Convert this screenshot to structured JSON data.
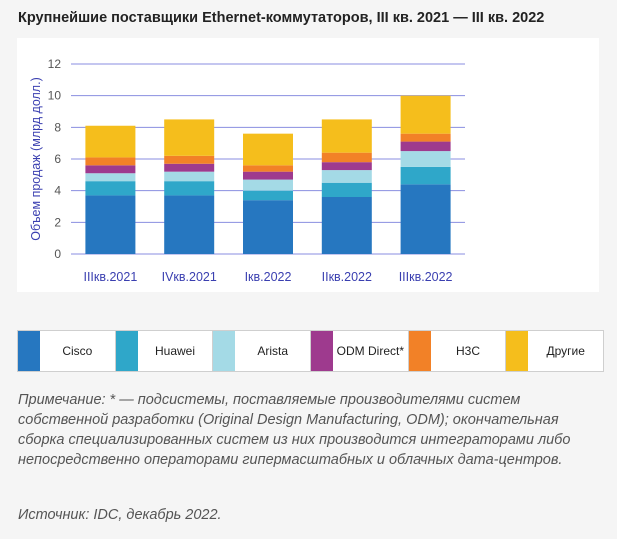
{
  "header": {
    "title": "Крупнейшие поставщики Ethernet-коммутаторов, III кв. 2021 — III кв. 2022"
  },
  "chart_data": {
    "type": "bar",
    "stacked": true,
    "title": "Крупнейшие поставщики Ethernet-коммутаторов, III кв. 2021 — III кв. 2022",
    "xlabel": "",
    "ylabel": "Объем продаж (млрд долл.)",
    "ylim": [
      0,
      12
    ],
    "yticks": [
      0,
      2,
      4,
      6,
      8,
      10,
      12
    ],
    "grid": true,
    "legend_position": "bottom",
    "categories": [
      "IIIкв.2021",
      "IVкв.2021",
      "Iкв.2022",
      "IIкв.2022",
      "IIIкв.2022"
    ],
    "series": [
      {
        "name": "Cisco",
        "color": "#2677c0",
        "values": [
          3.7,
          3.7,
          3.4,
          3.6,
          4.4
        ]
      },
      {
        "name": "Huawei",
        "color": "#2fa7c9",
        "values": [
          0.9,
          0.9,
          0.6,
          0.9,
          1.1
        ]
      },
      {
        "name": "Arista",
        "color": "#a4dae6",
        "values": [
          0.5,
          0.6,
          0.7,
          0.8,
          1.0
        ]
      },
      {
        "name": "ODM Direct*",
        "color": "#9e3a8e",
        "values": [
          0.5,
          0.5,
          0.5,
          0.5,
          0.6
        ]
      },
      {
        "name": "H3C",
        "color": "#f28127",
        "values": [
          0.5,
          0.5,
          0.4,
          0.6,
          0.5
        ]
      },
      {
        "name": "Другие",
        "color": "#f5be1c",
        "values": [
          2.0,
          2.3,
          2.0,
          2.1,
          2.4
        ]
      }
    ]
  },
  "note": "Примечание: * — подсистемы, поставляемые производителями систем собственной разработки (Original Design Manufacturing, ODM); окончательная сборка специализированных систем из них производится интеграторами либо непосредственно операторами гипермасштабных и облачных дата-центров.",
  "source": "Источник: IDC, декабрь 2022."
}
